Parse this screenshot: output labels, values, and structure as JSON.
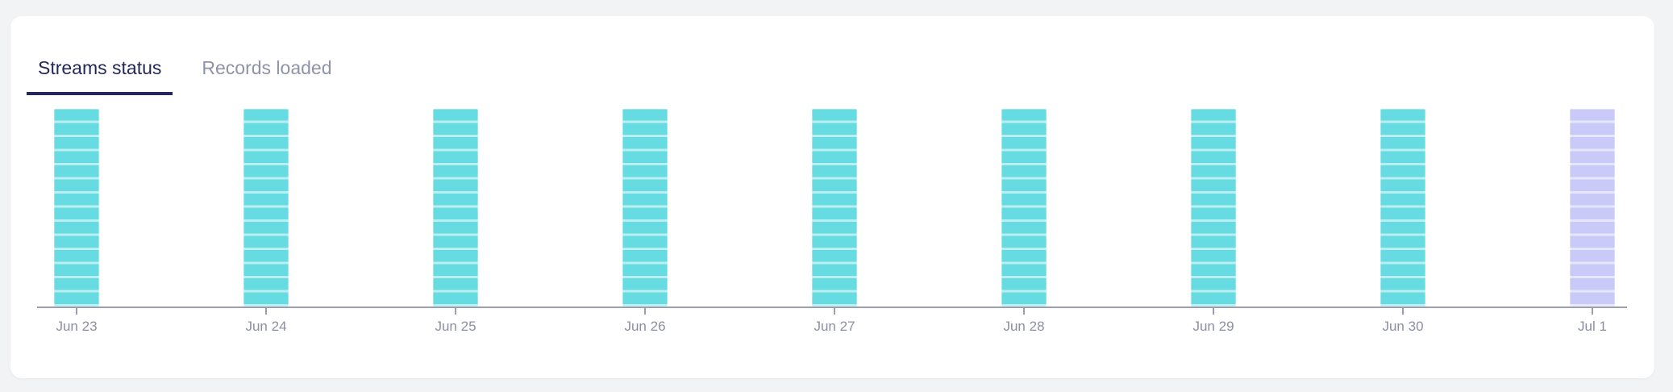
{
  "tabs": {
    "items": [
      {
        "label": "Streams status",
        "active": true
      },
      {
        "label": "Records loaded",
        "active": false
      }
    ]
  },
  "chart_data": {
    "type": "bar",
    "title": "Streams status",
    "xlabel": "",
    "ylabel": "",
    "categories": [
      "Jun 23",
      "Jun 24",
      "Jun 25",
      "Jun 26",
      "Jun 27",
      "Jun 28",
      "Jun 29",
      "Jun 30",
      "Jul 1"
    ],
    "series": [
      {
        "name": "Streams status",
        "values": [
          14,
          14,
          14,
          14,
          14,
          14,
          14,
          14,
          14
        ],
        "statuses": [
          "success",
          "success",
          "success",
          "success",
          "success",
          "success",
          "success",
          "success",
          "pending"
        ]
      }
    ],
    "ylim": [
      0,
      14
    ],
    "bar_segment_count": 14,
    "grid": false,
    "legend": false,
    "status_colors": {
      "success": "#66dbe1",
      "pending": "#c9caf8"
    }
  },
  "colors": {
    "page_bg": "#f2f3f5",
    "card_bg": "#ffffff",
    "tab_active": "#23275a",
    "tab_inactive": "#8f92a9",
    "axis_color": "#9c9eb0",
    "tick_label_color": "#8c8fa4"
  }
}
